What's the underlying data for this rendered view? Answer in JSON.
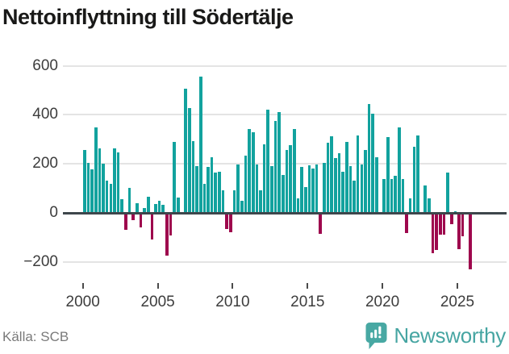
{
  "title": "Nettoinflyttning till Södertälje",
  "source": "Källa: SCB",
  "brand": {
    "name": "Newsworthy",
    "color": "#48a8a3"
  },
  "chart_data": {
    "type": "bar",
    "title": "Nettoinflyttning till Södertälje",
    "period": "quarterly",
    "start_year": 2000,
    "values": [
      256,
      204,
      177,
      350,
      264,
      201,
      133,
      117,
      262,
      248,
      57,
      -69,
      103,
      -31,
      40,
      -58,
      20,
      65,
      -107,
      36,
      48,
      32,
      -173,
      -91,
      290,
      62,
      0,
      507,
      428,
      294,
      190,
      555,
      119,
      188,
      226,
      163,
      169,
      93,
      -66,
      -80,
      93,
      197,
      48,
      235,
      343,
      330,
      196,
      92,
      278,
      420,
      190,
      374,
      412,
      155,
      256,
      275,
      343,
      60,
      188,
      106,
      193,
      180,
      199,
      -85,
      204,
      286,
      314,
      223,
      243,
      168,
      290,
      191,
      133,
      317,
      199,
      256,
      443,
      403,
      226,
      5,
      137,
      308,
      137,
      150,
      350,
      137,
      -83,
      59,
      270,
      316,
      0,
      111,
      59,
      -163,
      -152,
      -87,
      -89,
      166,
      -45,
      7,
      -147,
      -95,
      0,
      -231
    ],
    "x_tick_labels": [
      "2000",
      "2005",
      "2010",
      "2015",
      "2020",
      "2025"
    ],
    "y_tick_labels": [
      "600",
      "400",
      "200",
      "0",
      "−200"
    ],
    "y_tick_values": [
      600,
      400,
      200,
      0,
      -200
    ],
    "ylim": [
      -260,
      620
    ],
    "grid": true,
    "legend": "none",
    "positive_color": "#12a29e",
    "negative_color": "#9e074d"
  }
}
